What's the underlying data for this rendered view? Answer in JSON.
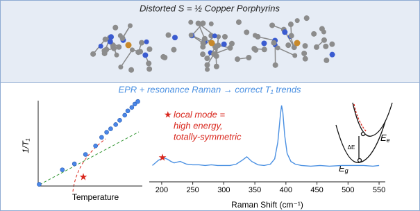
{
  "header": {
    "title": "Distorted S = ½ Copper Porphyrins"
  },
  "subtitle": "EPR + resonance Raman → correct T₁ trends",
  "annotation": {
    "marker": "★",
    "lines": [
      "local mode =",
      "high energy,",
      "totally-symmetric"
    ]
  },
  "energy_diagram": {
    "upper": {
      "symbol": "E",
      "subscript": "e"
    },
    "lower": {
      "symbol": "E",
      "subscript": "g"
    },
    "gap": "ΔE"
  },
  "chart_data": [
    {
      "type": "scatter",
      "xlabel": "Temperature",
      "ylabel": "1/T₁",
      "color": "#4a86e8",
      "x": [
        0.1,
        2.4,
        3.6,
        4.7,
        5.7,
        6.3,
        6.8,
        7.2,
        7.7,
        8.1,
        8.6,
        8.9,
        9.3,
        9.6,
        9.9
      ],
      "y": [
        0.2,
        1.9,
        2.6,
        3.7,
        4.7,
        5.7,
        6.3,
        6.7,
        7.2,
        7.7,
        8.3,
        8.8,
        9.2,
        9.6,
        9.9
      ],
      "xlim": [
        0,
        10
      ],
      "ylim": [
        0,
        10
      ],
      "star_marker": "★"
    },
    {
      "type": "line",
      "xlabel": "Raman Shift (cm⁻¹)",
      "color": "#4a90e2",
      "x": [
        185,
        190,
        195,
        200,
        205,
        210,
        215,
        220,
        225,
        230,
        235,
        240,
        250,
        260,
        270,
        280,
        290,
        300,
        310,
        320,
        330,
        337,
        345,
        355,
        365,
        375,
        382,
        387,
        391,
        393,
        395,
        398,
        402,
        408,
        415,
        425,
        440,
        455,
        470,
        490,
        510,
        525,
        540,
        550
      ],
      "values": [
        10,
        14,
        18,
        20,
        21,
        19,
        16,
        14,
        15,
        16,
        14,
        12,
        11,
        11,
        10,
        11,
        10,
        10,
        10,
        12,
        18,
        23,
        16,
        11,
        10,
        12,
        20,
        45,
        85,
        100,
        90,
        55,
        28,
        16,
        12,
        10,
        9,
        10,
        9,
        10,
        10,
        10,
        9,
        10
      ],
      "xlim": [
        180,
        560
      ],
      "ylim": [
        0,
        100
      ],
      "xticks": [
        200,
        250,
        300,
        350,
        400,
        450,
        500,
        550
      ],
      "star_marker": "★"
    }
  ]
}
